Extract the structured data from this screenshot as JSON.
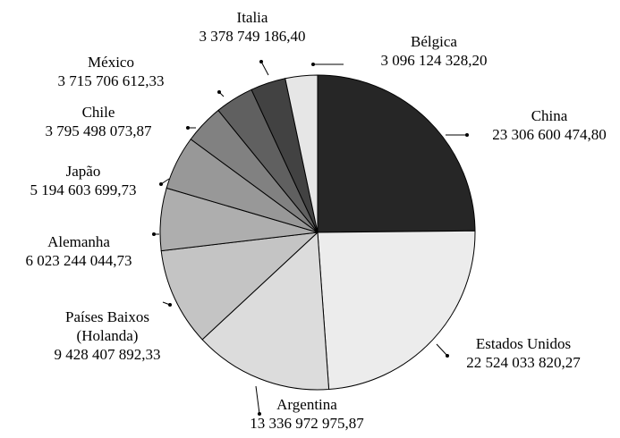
{
  "chart_data": {
    "type": "pie",
    "start_angle_deg": 0,
    "direction": "clockwise",
    "slices": [
      {
        "name": "China",
        "label_lines": [
          "China",
          "23 306 600 474,80"
        ],
        "value": 23306600474.8,
        "color": "#262626"
      },
      {
        "name": "Estados Unidos",
        "label_lines": [
          "Estados Unidos",
          "22 524 033 820,27"
        ],
        "value": 22524033820.27,
        "color": "#ececec"
      },
      {
        "name": "Argentina",
        "label_lines": [
          "Argentina",
          "13 336 972 975,87"
        ],
        "value": 13336972975.87,
        "color": "#dcdcdc"
      },
      {
        "name": "Países Baixos (Holanda)",
        "label_lines": [
          "Países Baixos",
          "(Holanda)",
          "9 428 407 892,33"
        ],
        "value": 9428407892.33,
        "color": "#c4c4c4"
      },
      {
        "name": "Alemanha",
        "label_lines": [
          "Alemanha",
          "6 023 244 044,73"
        ],
        "value": 6023244044.73,
        "color": "#aeaeae"
      },
      {
        "name": "Japão",
        "label_lines": [
          "Japão",
          "5 194 603 699,73"
        ],
        "value": 5194603699.73,
        "color": "#989898"
      },
      {
        "name": "Chile",
        "label_lines": [
          "Chile",
          "3 795 498 073,87"
        ],
        "value": 3795498073.87,
        "color": "#818181"
      },
      {
        "name": "México",
        "label_lines": [
          "México",
          "3 715 706 612,33"
        ],
        "value": 3715706612.33,
        "color": "#606060"
      },
      {
        "name": "Italia",
        "label_lines": [
          "Italia",
          "3 378 749 186,40"
        ],
        "value": 3378749186.4,
        "color": "#424242"
      },
      {
        "name": "Bélgica",
        "label_lines": [
          "Bélgica",
          "3 096 124 328,20"
        ],
        "value": 3096124328.2,
        "color": "#e6e6e6"
      }
    ]
  }
}
